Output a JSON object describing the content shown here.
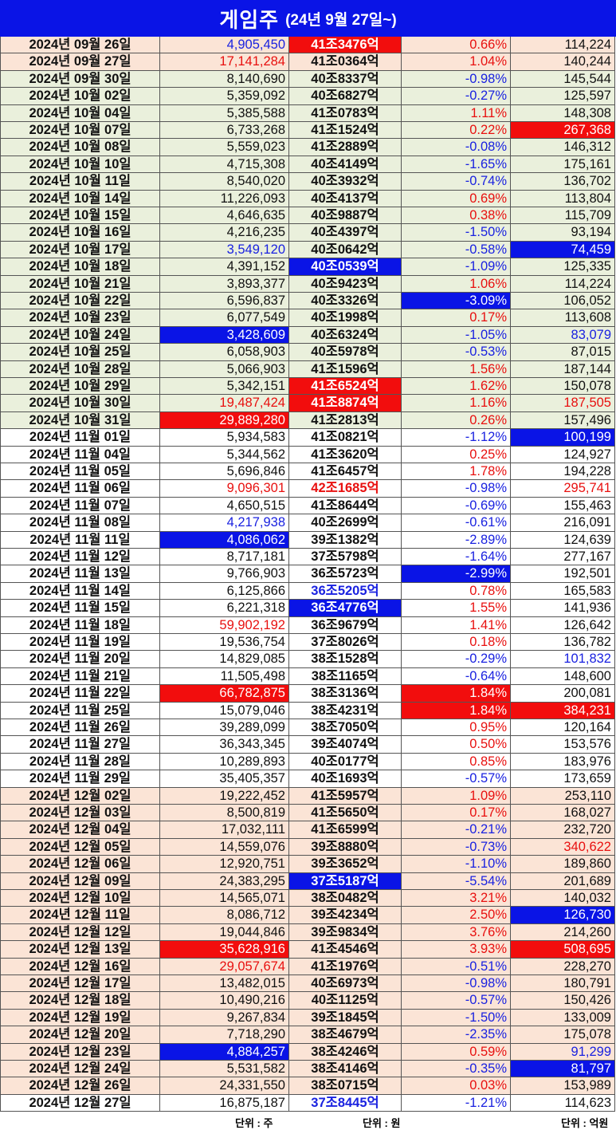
{
  "title": {
    "main": "게임주",
    "sub": "(24년 9월 27일~)"
  },
  "colors": {
    "header_blue": "#0a14e6",
    "highlight_red": "#f20d0d",
    "highlight_blue": "#0a14e6",
    "text_red": "#e8100f",
    "text_blue": "#1a22e0",
    "row_peach": "#fbe4d6",
    "row_green": "#eaf0dc"
  },
  "units": {
    "volume": "단위 : 주",
    "market_cap": "단위 : 원",
    "amount": "단위 : 억원"
  },
  "rows": [
    {
      "date": "2024년 09월 26일",
      "vol": "4,905,450",
      "cap": "41조3476억",
      "chg": "0.66%",
      "amt": "114,224",
      "bg": "peach",
      "vol_s": "tx-blue",
      "cap_s": "hl-red",
      "chg_s": "tx-red",
      "amt_s": "tx-black"
    },
    {
      "date": "2024년 09월 27일",
      "vol": "17,141,284",
      "cap": "41조0364억",
      "chg": "1.04%",
      "amt": "140,244",
      "bg": "peach",
      "vol_s": "tx-red",
      "cap_s": "tx-black",
      "chg_s": "tx-red",
      "amt_s": "tx-black"
    },
    {
      "date": "2024년 09월 30일",
      "vol": "8,140,690",
      "cap": "40조8337억",
      "chg": "-0.98%",
      "amt": "145,544",
      "bg": "green",
      "vol_s": "tx-black",
      "cap_s": "tx-black",
      "chg_s": "tx-blue",
      "amt_s": "tx-black"
    },
    {
      "date": "2024년 10월 02일",
      "vol": "5,359,092",
      "cap": "40조6827억",
      "chg": "-0.27%",
      "amt": "125,597",
      "bg": "green",
      "vol_s": "tx-black",
      "cap_s": "tx-black",
      "chg_s": "tx-blue",
      "amt_s": "tx-black"
    },
    {
      "date": "2024년 10월 04일",
      "vol": "5,385,588",
      "cap": "41조0783억",
      "chg": "1.11%",
      "amt": "148,308",
      "bg": "green",
      "vol_s": "tx-black",
      "cap_s": "tx-black",
      "chg_s": "tx-red",
      "amt_s": "tx-black"
    },
    {
      "date": "2024년 10월 07일",
      "vol": "6,733,268",
      "cap": "41조1524억",
      "chg": "0.22%",
      "amt": "267,368",
      "bg": "green",
      "vol_s": "tx-black",
      "cap_s": "tx-black",
      "chg_s": "tx-red",
      "amt_s": "hl-red"
    },
    {
      "date": "2024년 10월 08일",
      "vol": "5,559,023",
      "cap": "41조2889억",
      "chg": "-0.08%",
      "amt": "146,312",
      "bg": "green",
      "vol_s": "tx-black",
      "cap_s": "tx-black",
      "chg_s": "tx-blue",
      "amt_s": "tx-black"
    },
    {
      "date": "2024년 10월 10일",
      "vol": "4,715,308",
      "cap": "40조4149억",
      "chg": "-1.65%",
      "amt": "175,161",
      "bg": "green",
      "vol_s": "tx-black",
      "cap_s": "tx-black",
      "chg_s": "tx-blue",
      "amt_s": "tx-black"
    },
    {
      "date": "2024년 10월 11일",
      "vol": "8,540,020",
      "cap": "40조3932억",
      "chg": "-0.74%",
      "amt": "136,702",
      "bg": "green",
      "vol_s": "tx-black",
      "cap_s": "tx-black",
      "chg_s": "tx-blue",
      "amt_s": "tx-black"
    },
    {
      "date": "2024년 10월 14일",
      "vol": "11,226,093",
      "cap": "40조4137억",
      "chg": "0.69%",
      "amt": "113,804",
      "bg": "green",
      "vol_s": "tx-black",
      "cap_s": "tx-black",
      "chg_s": "tx-red",
      "amt_s": "tx-black"
    },
    {
      "date": "2024년 10월 15일",
      "vol": "4,646,635",
      "cap": "40조9887억",
      "chg": "0.38%",
      "amt": "115,709",
      "bg": "green",
      "vol_s": "tx-black",
      "cap_s": "tx-black",
      "chg_s": "tx-red",
      "amt_s": "tx-black"
    },
    {
      "date": "2024년 10월 16일",
      "vol": "4,216,235",
      "cap": "40조4397억",
      "chg": "-1.50%",
      "amt": "93,194",
      "bg": "green",
      "vol_s": "tx-black",
      "cap_s": "tx-black",
      "chg_s": "tx-blue",
      "amt_s": "tx-black"
    },
    {
      "date": "2024년 10월 17일",
      "vol": "3,549,120",
      "cap": "40조0642억",
      "chg": "-0.58%",
      "amt": "74,459",
      "bg": "green",
      "vol_s": "tx-blue",
      "cap_s": "tx-black",
      "chg_s": "tx-blue",
      "amt_s": "hl-blue"
    },
    {
      "date": "2024년 10월 18일",
      "vol": "4,391,152",
      "cap": "40조0539억",
      "chg": "-1.09%",
      "amt": "125,335",
      "bg": "green",
      "vol_s": "tx-black",
      "cap_s": "hl-blue",
      "chg_s": "tx-blue",
      "amt_s": "tx-black"
    },
    {
      "date": "2024년 10월 21일",
      "vol": "3,893,377",
      "cap": "40조9423억",
      "chg": "1.06%",
      "amt": "114,224",
      "bg": "green",
      "vol_s": "tx-black",
      "cap_s": "tx-black",
      "chg_s": "tx-red",
      "amt_s": "tx-black"
    },
    {
      "date": "2024년 10월 22일",
      "vol": "6,596,837",
      "cap": "40조3326억",
      "chg": "-3.09%",
      "amt": "106,052",
      "bg": "green",
      "vol_s": "tx-black",
      "cap_s": "tx-black",
      "chg_s": "hl-blue",
      "amt_s": "tx-black"
    },
    {
      "date": "2024년 10월 23일",
      "vol": "6,077,549",
      "cap": "40조1998억",
      "chg": "0.17%",
      "amt": "113,608",
      "bg": "green",
      "vol_s": "tx-black",
      "cap_s": "tx-black",
      "chg_s": "tx-red",
      "amt_s": "tx-black"
    },
    {
      "date": "2024년 10월 24일",
      "vol": "3,428,609",
      "cap": "40조6324억",
      "chg": "-1.05%",
      "amt": "83,079",
      "bg": "green",
      "vol_s": "hl-blue",
      "cap_s": "tx-black",
      "chg_s": "tx-blue",
      "amt_s": "tx-blue"
    },
    {
      "date": "2024년 10월 25일",
      "vol": "6,058,903",
      "cap": "40조5978억",
      "chg": "-0.53%",
      "amt": "87,015",
      "bg": "green",
      "vol_s": "tx-black",
      "cap_s": "tx-black",
      "chg_s": "tx-blue",
      "amt_s": "tx-black"
    },
    {
      "date": "2024년 10월 28일",
      "vol": "5,066,903",
      "cap": "41조1596억",
      "chg": "1.56%",
      "amt": "187,144",
      "bg": "green",
      "vol_s": "tx-black",
      "cap_s": "tx-black",
      "chg_s": "tx-red",
      "amt_s": "tx-black"
    },
    {
      "date": "2024년 10월 29일",
      "vol": "5,342,151",
      "cap": "41조6524억",
      "chg": "1.62%",
      "amt": "150,078",
      "bg": "green",
      "vol_s": "tx-black",
      "cap_s": "hl-red",
      "chg_s": "tx-red",
      "amt_s": "tx-black"
    },
    {
      "date": "2024년 10월 30일",
      "vol": "19,487,424",
      "cap": "41조8874억",
      "chg": "1.16%",
      "amt": "187,505",
      "bg": "green",
      "vol_s": "tx-red",
      "cap_s": "hl-red",
      "chg_s": "tx-red",
      "amt_s": "tx-red"
    },
    {
      "date": "2024년 10월 31일",
      "vol": "29,889,280",
      "cap": "41조2813억",
      "chg": "0.26%",
      "amt": "157,496",
      "bg": "green",
      "vol_s": "hl-red",
      "cap_s": "tx-black",
      "chg_s": "tx-red",
      "amt_s": "tx-black"
    },
    {
      "date": "2024년 11월 01일",
      "vol": "5,934,583",
      "cap": "41조0821억",
      "chg": "-1.12%",
      "amt": "100,199",
      "bg": "white",
      "vol_s": "tx-black",
      "cap_s": "tx-black",
      "chg_s": "tx-blue",
      "amt_s": "hl-blue"
    },
    {
      "date": "2024년 11월 04일",
      "vol": "5,344,562",
      "cap": "41조3620억",
      "chg": "0.25%",
      "amt": "124,927",
      "bg": "white",
      "vol_s": "tx-black",
      "cap_s": "tx-black",
      "chg_s": "tx-red",
      "amt_s": "tx-black"
    },
    {
      "date": "2024년 11월 05일",
      "vol": "5,696,846",
      "cap": "41조6457억",
      "chg": "1.78%",
      "amt": "194,228",
      "bg": "white",
      "vol_s": "tx-black",
      "cap_s": "tx-black",
      "chg_s": "tx-red",
      "amt_s": "tx-black"
    },
    {
      "date": "2024년 11월 06일",
      "vol": "9,096,301",
      "cap": "42조1685억",
      "chg": "-0.98%",
      "amt": "295,741",
      "bg": "white",
      "vol_s": "tx-red",
      "cap_s": "tx-red",
      "chg_s": "tx-blue",
      "amt_s": "tx-red"
    },
    {
      "date": "2024년 11월 07일",
      "vol": "4,650,515",
      "cap": "41조8644억",
      "chg": "-0.69%",
      "amt": "155,463",
      "bg": "white",
      "vol_s": "tx-black",
      "cap_s": "tx-black",
      "chg_s": "tx-blue",
      "amt_s": "tx-black"
    },
    {
      "date": "2024년 11월 08일",
      "vol": "4,217,938",
      "cap": "40조2699억",
      "chg": "-0.61%",
      "amt": "216,091",
      "bg": "white",
      "vol_s": "tx-blue",
      "cap_s": "tx-black",
      "chg_s": "tx-blue",
      "amt_s": "tx-black"
    },
    {
      "date": "2024년 11월 11일",
      "vol": "4,086,062",
      "cap": "39조1382억",
      "chg": "-2.89%",
      "amt": "124,639",
      "bg": "white",
      "vol_s": "hl-blue",
      "cap_s": "tx-black",
      "chg_s": "tx-blue",
      "amt_s": "tx-black"
    },
    {
      "date": "2024년 11월 12일",
      "vol": "8,717,181",
      "cap": "37조5798억",
      "chg": "-1.64%",
      "amt": "277,167",
      "bg": "white",
      "vol_s": "tx-black",
      "cap_s": "tx-black",
      "chg_s": "tx-blue",
      "amt_s": "tx-black"
    },
    {
      "date": "2024년 11월 13일",
      "vol": "9,766,903",
      "cap": "36조5723억",
      "chg": "-2.99%",
      "amt": "192,501",
      "bg": "white",
      "vol_s": "tx-black",
      "cap_s": "tx-black",
      "chg_s": "hl-blue",
      "amt_s": "tx-black"
    },
    {
      "date": "2024년 11월 14일",
      "vol": "6,125,866",
      "cap": "36조5205억",
      "chg": "0.78%",
      "amt": "165,583",
      "bg": "white",
      "vol_s": "tx-black",
      "cap_s": "tx-blue",
      "chg_s": "tx-red",
      "amt_s": "tx-black"
    },
    {
      "date": "2024년 11월 15일",
      "vol": "6,221,318",
      "cap": "36조4776억",
      "chg": "1.55%",
      "amt": "141,936",
      "bg": "white",
      "vol_s": "tx-black",
      "cap_s": "hl-blue",
      "chg_s": "tx-red",
      "amt_s": "tx-black"
    },
    {
      "date": "2024년 11월 18일",
      "vol": "59,902,192",
      "cap": "36조9679억",
      "chg": "1.41%",
      "amt": "126,642",
      "bg": "white",
      "vol_s": "tx-red",
      "cap_s": "tx-black",
      "chg_s": "tx-red",
      "amt_s": "tx-black"
    },
    {
      "date": "2024년 11월 19일",
      "vol": "19,536,754",
      "cap": "37조8026억",
      "chg": "0.18%",
      "amt": "136,782",
      "bg": "white",
      "vol_s": "tx-black",
      "cap_s": "tx-black",
      "chg_s": "tx-red",
      "amt_s": "tx-black"
    },
    {
      "date": "2024년 11월 20일",
      "vol": "14,829,085",
      "cap": "38조1528억",
      "chg": "-0.29%",
      "amt": "101,832",
      "bg": "white",
      "vol_s": "tx-black",
      "cap_s": "tx-black",
      "chg_s": "tx-blue",
      "amt_s": "tx-blue"
    },
    {
      "date": "2024년 11월 21일",
      "vol": "11,505,498",
      "cap": "38조1165억",
      "chg": "-0.64%",
      "amt": "148,600",
      "bg": "white",
      "vol_s": "tx-black",
      "cap_s": "tx-black",
      "chg_s": "tx-blue",
      "amt_s": "tx-black"
    },
    {
      "date": "2024년 11월 22일",
      "vol": "66,782,875",
      "cap": "38조3136억",
      "chg": "1.84%",
      "amt": "200,081",
      "bg": "white",
      "vol_s": "hl-red",
      "cap_s": "tx-black",
      "chg_s": "hl-red",
      "amt_s": "tx-black"
    },
    {
      "date": "2024년 11월 25일",
      "vol": "15,079,046",
      "cap": "38조4231억",
      "chg": "1.84%",
      "amt": "384,231",
      "bg": "white",
      "vol_s": "tx-black",
      "cap_s": "tx-black",
      "chg_s": "hl-red",
      "amt_s": "hl-red"
    },
    {
      "date": "2024년 11월 26일",
      "vol": "39,289,099",
      "cap": "38조7050억",
      "chg": "0.95%",
      "amt": "120,164",
      "bg": "white",
      "vol_s": "tx-black",
      "cap_s": "tx-black",
      "chg_s": "tx-red",
      "amt_s": "tx-black"
    },
    {
      "date": "2024년 11월 27일",
      "vol": "36,343,345",
      "cap": "39조4074억",
      "chg": "0.50%",
      "amt": "153,576",
      "bg": "white",
      "vol_s": "tx-black",
      "cap_s": "tx-black",
      "chg_s": "tx-red",
      "amt_s": "tx-black"
    },
    {
      "date": "2024년 11월 28일",
      "vol": "10,289,893",
      "cap": "40조0177억",
      "chg": "0.85%",
      "amt": "183,976",
      "bg": "white",
      "vol_s": "tx-black",
      "cap_s": "tx-black",
      "chg_s": "tx-red",
      "amt_s": "tx-black"
    },
    {
      "date": "2024년 11월 29일",
      "vol": "35,405,357",
      "cap": "40조1693억",
      "chg": "-0.57%",
      "amt": "173,659",
      "bg": "white",
      "vol_s": "tx-black",
      "cap_s": "tx-black",
      "chg_s": "tx-blue",
      "amt_s": "tx-black"
    },
    {
      "date": "2024년 12월 02일",
      "vol": "19,222,452",
      "cap": "41조5957억",
      "chg": "1.09%",
      "amt": "253,110",
      "bg": "peach",
      "vol_s": "tx-black",
      "cap_s": "tx-black",
      "chg_s": "tx-red",
      "amt_s": "tx-black"
    },
    {
      "date": "2024년 12월 03일",
      "vol": "8,500,819",
      "cap": "41조5650억",
      "chg": "0.17%",
      "amt": "168,027",
      "bg": "peach",
      "vol_s": "tx-black",
      "cap_s": "tx-black",
      "chg_s": "tx-red",
      "amt_s": "tx-black"
    },
    {
      "date": "2024년 12월 04일",
      "vol": "17,032,111",
      "cap": "41조6599억",
      "chg": "-0.21%",
      "amt": "232,720",
      "bg": "peach",
      "vol_s": "tx-black",
      "cap_s": "tx-black",
      "chg_s": "tx-blue",
      "amt_s": "tx-black"
    },
    {
      "date": "2024년 12월 05일",
      "vol": "14,559,076",
      "cap": "39조8880억",
      "chg": "-0.73%",
      "amt": "340,622",
      "bg": "peach",
      "vol_s": "tx-black",
      "cap_s": "tx-black",
      "chg_s": "tx-blue",
      "amt_s": "tx-red"
    },
    {
      "date": "2024년 12월 06일",
      "vol": "12,920,751",
      "cap": "39조3652억",
      "chg": "-1.10%",
      "amt": "189,860",
      "bg": "peach",
      "vol_s": "tx-black",
      "cap_s": "tx-black",
      "chg_s": "tx-blue",
      "amt_s": "tx-black"
    },
    {
      "date": "2024년 12월 09일",
      "vol": "24,383,295",
      "cap": "37조5187억",
      "chg": "-5.54%",
      "amt": "201,689",
      "bg": "peach",
      "vol_s": "tx-black",
      "cap_s": "hl-blue",
      "chg_s": "tx-blue",
      "amt_s": "tx-black"
    },
    {
      "date": "2024년 12월 10일",
      "vol": "14,565,071",
      "cap": "38조0482억",
      "chg": "3.21%",
      "amt": "140,032",
      "bg": "peach",
      "vol_s": "tx-black",
      "cap_s": "tx-black",
      "chg_s": "tx-red",
      "amt_s": "tx-black"
    },
    {
      "date": "2024년 12월 11일",
      "vol": "8,086,712",
      "cap": "39조4234억",
      "chg": "2.50%",
      "amt": "126,730",
      "bg": "peach",
      "vol_s": "tx-black",
      "cap_s": "tx-black",
      "chg_s": "tx-red",
      "amt_s": "hl-blue"
    },
    {
      "date": "2024년 12월 12일",
      "vol": "19,044,846",
      "cap": "39조9834억",
      "chg": "3.76%",
      "amt": "214,260",
      "bg": "peach",
      "vol_s": "tx-black",
      "cap_s": "tx-black",
      "chg_s": "tx-red",
      "amt_s": "tx-black"
    },
    {
      "date": "2024년 12월 13일",
      "vol": "35,628,916",
      "cap": "41조4546억",
      "chg": "3.93%",
      "amt": "508,695",
      "bg": "peach",
      "vol_s": "hl-red",
      "cap_s": "tx-black",
      "chg_s": "tx-red",
      "amt_s": "hl-red"
    },
    {
      "date": "2024년 12월 16일",
      "vol": "29,057,674",
      "cap": "41조1976억",
      "chg": "-0.51%",
      "amt": "228,270",
      "bg": "peach",
      "vol_s": "tx-red",
      "cap_s": "tx-black",
      "chg_s": "tx-blue",
      "amt_s": "tx-black"
    },
    {
      "date": "2024년 12월 17일",
      "vol": "13,482,015",
      "cap": "40조6973억",
      "chg": "-0.98%",
      "amt": "180,791",
      "bg": "peach",
      "vol_s": "tx-black",
      "cap_s": "tx-black",
      "chg_s": "tx-blue",
      "amt_s": "tx-black"
    },
    {
      "date": "2024년 12월 18일",
      "vol": "10,490,216",
      "cap": "40조1125억",
      "chg": "-0.57%",
      "amt": "150,426",
      "bg": "peach",
      "vol_s": "tx-black",
      "cap_s": "tx-black",
      "chg_s": "tx-blue",
      "amt_s": "tx-black"
    },
    {
      "date": "2024년 12월 19일",
      "vol": "9,267,834",
      "cap": "39조1845억",
      "chg": "-1.50%",
      "amt": "133,009",
      "bg": "peach",
      "vol_s": "tx-black",
      "cap_s": "tx-black",
      "chg_s": "tx-blue",
      "amt_s": "tx-black"
    },
    {
      "date": "2024년 12월 20일",
      "vol": "7,718,290",
      "cap": "38조4679억",
      "chg": "-2.35%",
      "amt": "175,078",
      "bg": "peach",
      "vol_s": "tx-black",
      "cap_s": "tx-black",
      "chg_s": "tx-blue",
      "amt_s": "tx-black"
    },
    {
      "date": "2024년 12월 23일",
      "vol": "4,884,257",
      "cap": "38조4246억",
      "chg": "0.59%",
      "amt": "91,299",
      "bg": "peach",
      "vol_s": "hl-blue",
      "cap_s": "tx-black",
      "chg_s": "tx-red",
      "amt_s": "tx-blue"
    },
    {
      "date": "2024년 12월 24일",
      "vol": "5,531,582",
      "cap": "38조4146억",
      "chg": "-0.35%",
      "amt": "81,797",
      "bg": "peach",
      "vol_s": "tx-black",
      "cap_s": "tx-black",
      "chg_s": "tx-blue",
      "amt_s": "hl-blue"
    },
    {
      "date": "2024년 12월 26일",
      "vol": "24,331,550",
      "cap": "38조0715억",
      "chg": "0.03%",
      "amt": "153,989",
      "bg": "peach",
      "vol_s": "tx-black",
      "cap_s": "tx-black",
      "chg_s": "tx-red",
      "amt_s": "tx-black"
    },
    {
      "date": "2024년 12월 27일",
      "vol": "16,875,187",
      "cap": "37조8445억",
      "chg": "-1.21%",
      "amt": "114,623",
      "bg": "white",
      "vol_s": "tx-black",
      "cap_s": "tx-blue",
      "chg_s": "tx-blue",
      "amt_s": "tx-black"
    }
  ]
}
